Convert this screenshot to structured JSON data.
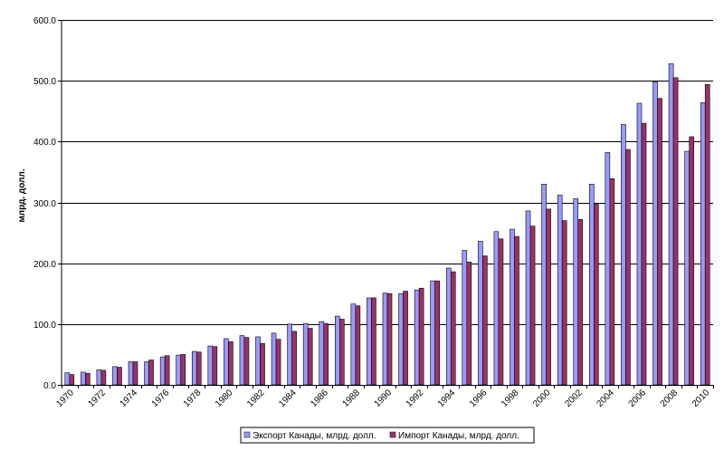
{
  "chart_data": {
    "type": "bar",
    "title": "",
    "xlabel": "",
    "ylabel": "млрд. долл.",
    "ylim": [
      0,
      600
    ],
    "yticks": [
      "0.0",
      "100.0",
      "200.0",
      "300.0",
      "400.0",
      "500.0",
      "600.0"
    ],
    "grid": true,
    "legend_position": "bottom",
    "categories": [
      "1970",
      "1971",
      "1972",
      "1973",
      "1974",
      "1975",
      "1976",
      "1977",
      "1978",
      "1979",
      "1980",
      "1981",
      "1982",
      "1983",
      "1984",
      "1985",
      "1986",
      "1987",
      "1988",
      "1989",
      "1990",
      "1991",
      "1992",
      "1993",
      "1994",
      "1995",
      "1996",
      "1997",
      "1998",
      "1999",
      "2000",
      "2001",
      "2002",
      "2003",
      "2004",
      "2005",
      "2006",
      "2007",
      "2008",
      "2009",
      "2010"
    ],
    "xtick_labels": [
      "1970",
      "1972",
      "1974",
      "1976",
      "1978",
      "1980",
      "1982",
      "1984",
      "1986",
      "1988",
      "1990",
      "1992",
      "1994",
      "1996",
      "1998",
      "2000",
      "2002",
      "2004",
      "2006",
      "2008",
      "2010"
    ],
    "series": [
      {
        "name": "Экспорт Канады, млрд. долл.",
        "color": "#9999ff",
        "values": [
          20,
          21,
          25,
          30,
          38,
          38,
          46,
          49,
          55,
          64,
          76,
          81,
          79,
          85,
          100,
          101,
          104,
          113,
          133,
          143,
          151,
          150,
          156,
          171,
          192,
          221,
          236,
          252,
          256,
          286,
          330,
          312,
          306,
          330,
          382,
          428,
          463,
          498,
          528,
          384,
          464
        ]
      },
      {
        "name": "Импорт Канады, млрд. долл.",
        "color": "#993366",
        "values": [
          17,
          19,
          24,
          29,
          38,
          41,
          48,
          50,
          54,
          63,
          71,
          78,
          68,
          75,
          88,
          93,
          101,
          108,
          130,
          143,
          150,
          154,
          159,
          171,
          186,
          202,
          212,
          240,
          244,
          261,
          289,
          270,
          272,
          297,
          339,
          387,
          430,
          471,
          505,
          408,
          494
        ]
      }
    ]
  }
}
